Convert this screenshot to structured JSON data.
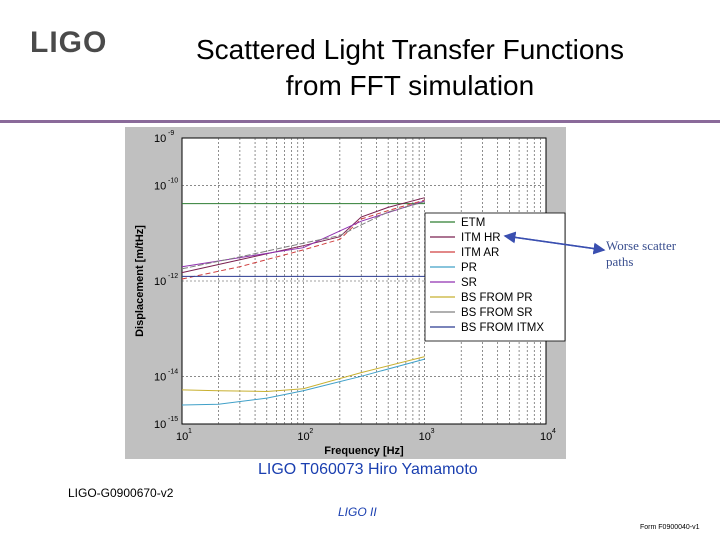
{
  "logo": "LIGO",
  "title_line1": "Scattered Light Transfer Functions",
  "title_line2": "from FFT simulation",
  "annotation_line1": "Worse scatter",
  "annotation_line2": "paths",
  "credit": "LIGO T060073 Hiro Yamamoto",
  "doc_id": "LIGO-G0900670-v2",
  "footer": "LIGO II",
  "form": "Form F0900040-v1",
  "colors": {
    "ETM": "#2e7d32",
    "ITM HR": "#7a2050",
    "ITM AR": "#d04040",
    "PR": "#40a0c8",
    "SR": "#9030b0",
    "BS FROM PR": "#c8b030",
    "BS FROM SR": "#808080",
    "BS FROM ITMX": "#2a3a90",
    "arrow": "#3a4fb0"
  },
  "chart_data": {
    "type": "line",
    "xlabel": "Frequency [Hz]",
    "ylabel": "Displacement [m/tHz]",
    "xscale": "log",
    "yscale": "log",
    "xlim": [
      10,
      10000
    ],
    "ylim": [
      1e-15,
      1e-09
    ],
    "x_ticks": [
      {
        "base": "10",
        "exp": "1",
        "value": 10
      },
      {
        "base": "10",
        "exp": "2",
        "value": 100
      },
      {
        "base": "10",
        "exp": "3",
        "value": 1000
      },
      {
        "base": "10",
        "exp": "4",
        "value": 10000
      }
    ],
    "y_ticks": [
      {
        "base": "10",
        "exp": "-9",
        "value": 1e-09
      },
      {
        "base": "10",
        "exp": "-10",
        "value": 1e-10
      },
      {
        "base": "10",
        "exp": "-12",
        "value": 1e-12
      },
      {
        "base": "10",
        "exp": "-14",
        "value": 1e-14
      },
      {
        "base": "10",
        "exp": "-15",
        "value": 1e-15
      }
    ],
    "grid": true,
    "legend_position": "right",
    "series": [
      {
        "name": "ETM",
        "x": [
          10,
          1000
        ],
        "y": [
          4.2e-11,
          4.2e-11
        ]
      },
      {
        "name": "ITM HR",
        "x": [
          10,
          30,
          100,
          200,
          300,
          500,
          1000
        ],
        "y": [
          1.5e-12,
          2.8e-12,
          5.5e-12,
          8.5e-12,
          2.2e-11,
          3.5e-11,
          5.6e-11
        ]
      },
      {
        "name": "ITM AR",
        "x": [
          10,
          30,
          100,
          200,
          300,
          500,
          1000
        ],
        "y": [
          1.1e-12,
          2e-12,
          4.5e-12,
          7.5e-12,
          2e-11,
          3e-11,
          5e-11
        ]
      },
      {
        "name": "PR",
        "x": [
          10,
          20,
          50,
          100,
          300,
          1000
        ],
        "y": [
          2.5e-15,
          2.6e-15,
          3.5e-15,
          5e-15,
          1e-14,
          2.3e-14
        ]
      },
      {
        "name": "SR",
        "x": [
          10,
          100,
          300,
          1000
        ],
        "y": [
          2e-12,
          5e-12,
          1.8e-11,
          4.8e-11
        ]
      },
      {
        "name": "BS FROM PR",
        "x": [
          10,
          20,
          50,
          100,
          300,
          1000
        ],
        "y": [
          5.2e-15,
          5e-15,
          4.8e-15,
          5.5e-15,
          1.2e-14,
          2.6e-14
        ]
      },
      {
        "name": "BS FROM SR",
        "x": [
          10,
          30,
          100,
          200,
          300,
          500,
          1000
        ],
        "y": [
          1.8e-12,
          3.2e-12,
          6.2e-12,
          9e-12,
          1.5e-11,
          2.8e-11,
          4.6e-11
        ]
      },
      {
        "name": "BS FROM ITMX",
        "x": [
          10,
          1000
        ],
        "y": [
          1.25e-12,
          1.25e-12
        ]
      }
    ]
  }
}
